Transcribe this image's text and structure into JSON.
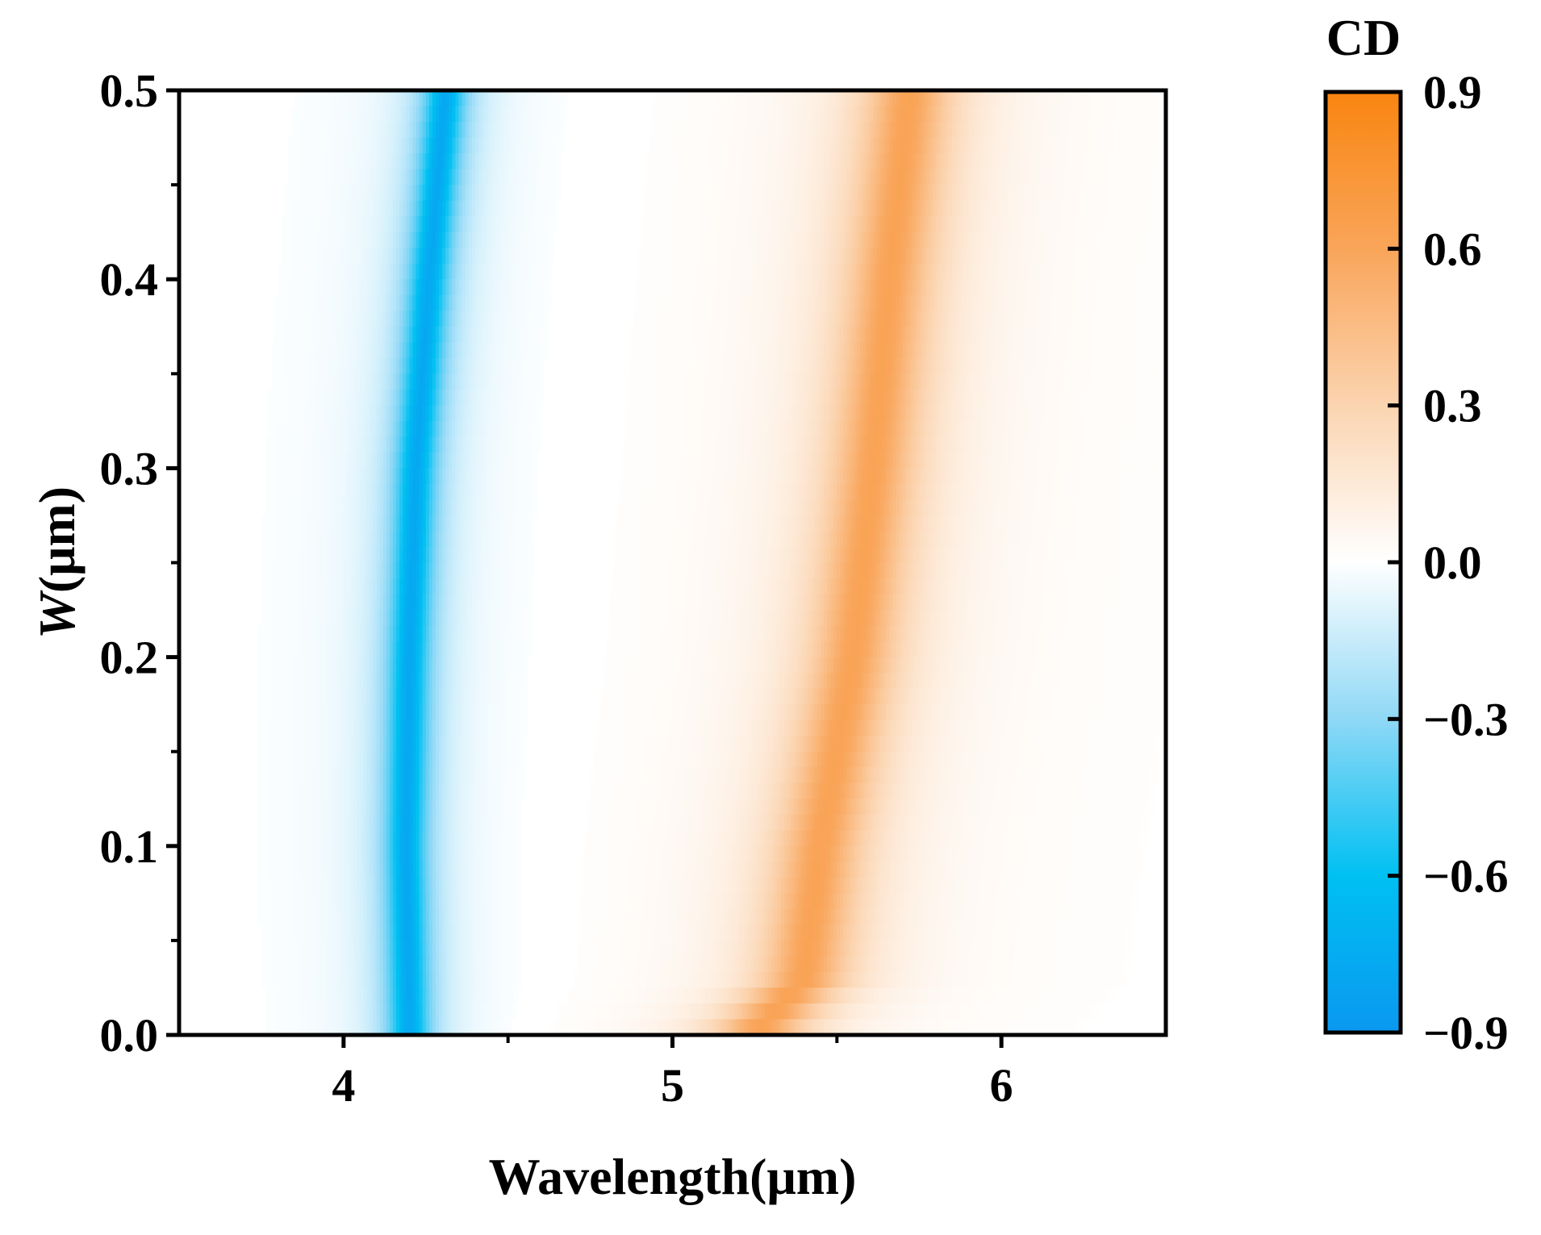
{
  "chart_data": {
    "type": "heatmap",
    "title": "",
    "xlabel": "Wavelength(μm)",
    "ylabel": "W(μm)",
    "ylabel_parts": {
      "var": "W",
      "unit": "(μm)"
    },
    "xlim": [
      3.5,
      6.5
    ],
    "ylim": [
      0.0,
      0.5
    ],
    "x_ticks": [
      4,
      5,
      6
    ],
    "x_tick_labels": [
      "4",
      "5",
      "6"
    ],
    "y_ticks": [
      0.0,
      0.1,
      0.2,
      0.3,
      0.4,
      0.5
    ],
    "y_tick_labels": [
      "0.0",
      "0.1",
      "0.2",
      "0.3",
      "0.4",
      "0.5"
    ],
    "grid": false,
    "colorbar": {
      "title": "CD",
      "range": [
        -0.9,
        0.9
      ],
      "ticks": [
        -0.9,
        -0.6,
        -0.3,
        0.0,
        0.3,
        0.6,
        0.9
      ],
      "tick_labels": [
        "−0.9",
        "−0.6",
        "−0.3",
        "0.0",
        "0.3",
        "0.6",
        "0.9"
      ],
      "colors": [
        [
          -0.9,
          "#0a98f0"
        ],
        [
          -0.6,
          "#00c0f2"
        ],
        [
          -0.3,
          "#8fd8f6"
        ],
        [
          0.0,
          "#ffffff"
        ],
        [
          0.3,
          "#fbd4b0"
        ],
        [
          0.6,
          "#f9a55a"
        ],
        [
          0.9,
          "#f98510"
        ]
      ]
    },
    "bands": [
      {
        "name": "negative",
        "peak_cd": -0.78,
        "width_um": 0.12,
        "ridge": [
          {
            "w": 0.0,
            "wavelength": 4.2
          },
          {
            "w": 0.1,
            "wavelength": 4.19
          },
          {
            "w": 0.2,
            "wavelength": 4.2
          },
          {
            "w": 0.3,
            "wavelength": 4.22
          },
          {
            "w": 0.4,
            "wavelength": 4.26
          },
          {
            "w": 0.5,
            "wavelength": 4.31
          }
        ]
      },
      {
        "name": "positive",
        "peak_cd": 0.62,
        "width_um": 0.26,
        "ridge": [
          {
            "w": 0.0,
            "wavelength": 5.25
          },
          {
            "w": 0.03,
            "wavelength": 5.4
          },
          {
            "w": 0.1,
            "wavelength": 5.45
          },
          {
            "w": 0.2,
            "wavelength": 5.55
          },
          {
            "w": 0.3,
            "wavelength": 5.61
          },
          {
            "w": 0.4,
            "wavelength": 5.66
          },
          {
            "w": 0.5,
            "wavelength": 5.72
          }
        ]
      }
    ]
  }
}
